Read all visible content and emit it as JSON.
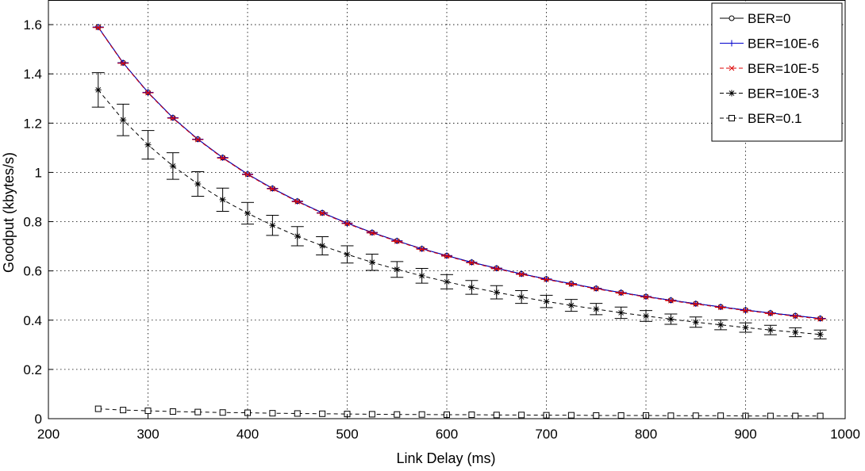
{
  "chart_data": {
    "type": "line",
    "xlabel": "Link Delay (ms)",
    "ylabel": "Goodput (kbytes/s)",
    "xlim": [
      200,
      1000
    ],
    "ylim": [
      0,
      1.7
    ],
    "x_ticks": [
      "200",
      "300",
      "400",
      "500",
      "600",
      "700",
      "800",
      "900",
      "1000"
    ],
    "y_ticks": [
      "0",
      "0.2",
      "0.4",
      "0.6",
      "0.8",
      "1",
      "1.2",
      "1.4",
      "1.6"
    ],
    "grid": true,
    "legend_position": "top-right",
    "x": [
      250,
      275,
      300,
      325,
      350,
      375,
      400,
      425,
      450,
      475,
      500,
      525,
      550,
      575,
      600,
      625,
      650,
      675,
      700,
      725,
      750,
      775,
      800,
      825,
      850,
      875,
      900,
      925,
      950,
      975
    ],
    "series": [
      {
        "name": "BER=0",
        "marker": "circle",
        "color": "#000000",
        "values": [
          1.59,
          1.445,
          1.325,
          1.222,
          1.135,
          1.06,
          0.993,
          0.935,
          0.883,
          0.836,
          0.794,
          0.756,
          0.722,
          0.69,
          0.662,
          0.635,
          0.611,
          0.588,
          0.567,
          0.548,
          0.529,
          0.512,
          0.496,
          0.481,
          0.467,
          0.454,
          0.441,
          0.429,
          0.418,
          0.407
        ]
      },
      {
        "name": "BER=10E-6",
        "marker": "plus",
        "color": "#0000cc",
        "values": [
          1.59,
          1.445,
          1.325,
          1.222,
          1.135,
          1.06,
          0.993,
          0.935,
          0.883,
          0.836,
          0.794,
          0.756,
          0.722,
          0.69,
          0.662,
          0.635,
          0.611,
          0.588,
          0.567,
          0.548,
          0.529,
          0.512,
          0.496,
          0.481,
          0.467,
          0.454,
          0.441,
          0.429,
          0.418,
          0.407
        ]
      },
      {
        "name": "BER=10E-5",
        "marker": "x",
        "color": "#dd0000",
        "values": [
          1.588,
          1.443,
          1.323,
          1.22,
          1.133,
          1.058,
          0.991,
          0.933,
          0.881,
          0.834,
          0.792,
          0.754,
          0.72,
          0.688,
          0.66,
          0.633,
          0.609,
          0.586,
          0.565,
          0.546,
          0.527,
          0.51,
          0.494,
          0.479,
          0.465,
          0.452,
          0.439,
          0.427,
          0.416,
          0.405
        ]
      },
      {
        "name": "BER=10E-3",
        "marker": "star",
        "color": "#000000",
        "values": [
          1.335,
          1.213,
          1.112,
          1.026,
          0.953,
          0.889,
          0.834,
          0.785,
          0.741,
          0.702,
          0.667,
          0.635,
          0.606,
          0.58,
          0.556,
          0.533,
          0.513,
          0.494,
          0.476,
          0.46,
          0.445,
          0.43,
          0.417,
          0.404,
          0.392,
          0.381,
          0.37,
          0.36,
          0.351,
          0.342
        ],
        "error": [
          0.07,
          0.064,
          0.058,
          0.054,
          0.05,
          0.047,
          0.044,
          0.041,
          0.039,
          0.037,
          0.035,
          0.033,
          0.032,
          0.03,
          0.029,
          0.028,
          0.027,
          0.026,
          0.025,
          0.024,
          0.023,
          0.023,
          0.022,
          0.021,
          0.021,
          0.02,
          0.019,
          0.019,
          0.018,
          0.018
        ]
      },
      {
        "name": "BER=0.1",
        "marker": "square",
        "color": "#000000",
        "values": [
          0.04,
          0.035,
          0.032,
          0.029,
          0.027,
          0.025,
          0.024,
          0.022,
          0.021,
          0.02,
          0.019,
          0.018,
          0.017,
          0.017,
          0.016,
          0.016,
          0.015,
          0.015,
          0.014,
          0.014,
          0.013,
          0.013,
          0.013,
          0.012,
          0.012,
          0.012,
          0.011,
          0.011,
          0.011,
          0.011
        ]
      }
    ]
  }
}
